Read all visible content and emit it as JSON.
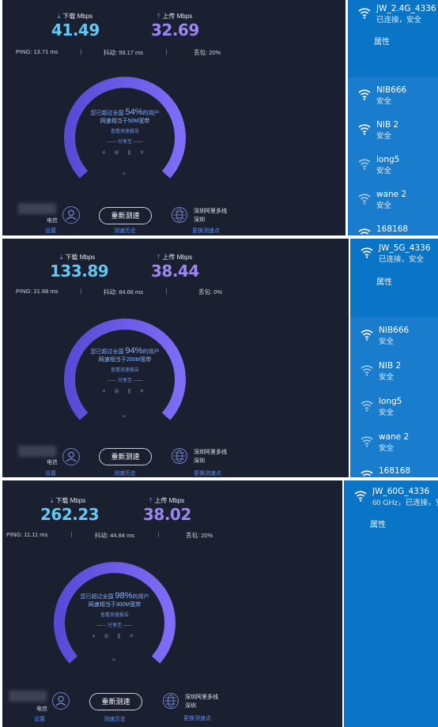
{
  "colors": {
    "background": "#1b2030",
    "download": "#5fc8f5",
    "upload": "#9c86f5",
    "wifi_panel": "#0a74c7",
    "link": "#5a8cf5"
  },
  "labels": {
    "download": "下载 Mbps",
    "upload": "上传 Mbps",
    "ping": "PING:",
    "jitter": "抖动:",
    "loss": "丢包:",
    "percent_prefix": "您已超过全国",
    "percent_suffix": "的用户",
    "bandwidth_prefix": "网速相当于",
    "bandwidth_suffix": "宽带",
    "report": "查看测速报告",
    "share": "—— 分享至 ——",
    "isp": "电信",
    "settings": "设置",
    "retest": "重新测速",
    "history": "测速历史",
    "server_line1": "深圳阿里多线",
    "server_line2": "深圳",
    "change_server": "更换测速点",
    "properties": "属性"
  },
  "tests": [
    {
      "download": "41.49",
      "upload": "32.69",
      "ping": "13.71 ms",
      "jitter": "59.17 ms",
      "loss": "20%",
      "percent": "54%",
      "bandwidth": "50M",
      "wifi": {
        "connected_name": "JW_2.4G_4336",
        "connected_status": "已连接，安全"
      }
    },
    {
      "download": "133.89",
      "upload": "38.44",
      "ping": "21.68 ms",
      "jitter": "84.66 ms",
      "loss": "0%",
      "percent": "94%",
      "bandwidth": "200M",
      "wifi": {
        "connected_name": "JW_5G_4336",
        "connected_status": "已连接，安全"
      }
    },
    {
      "download": "262.23",
      "upload": "38.02",
      "ping": "11.11 ms",
      "jitter": "44.84 ms",
      "loss": "20%",
      "percent": "98%",
      "bandwidth": "300M",
      "wifi": {
        "connected_name": "JW_60G_4336",
        "connected_status": "60 GHz，已连接，安"
      }
    }
  ],
  "networks": [
    {
      "name": "NIB666",
      "status": "安全"
    },
    {
      "name": "NIB 2",
      "status": "安全"
    },
    {
      "name": "long5",
      "status": "安全"
    },
    {
      "name": "wane 2",
      "status": "安全"
    },
    {
      "name": "168168",
      "status": ""
    }
  ],
  "icons": {
    "download": "arrow-down-icon",
    "upload": "arrow-up-icon",
    "wifi": "wifi-icon",
    "user": "user-icon",
    "globe": "globe-icon",
    "share": "share-icons",
    "link": "link-icon"
  }
}
